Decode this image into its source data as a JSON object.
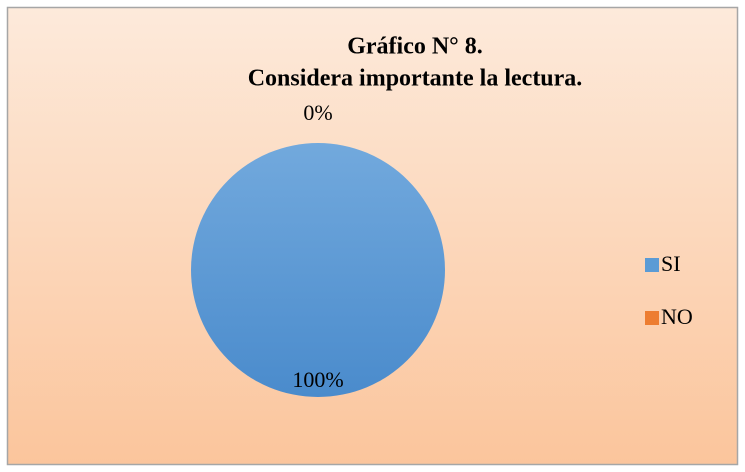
{
  "chart_data": {
    "type": "pie",
    "title": [
      "Gráfico N° 8.",
      "Considera importante la lectura."
    ],
    "categories": [
      "SI",
      "NO"
    ],
    "values": [
      100,
      0
    ],
    "value_labels": [
      "100%",
      "0%"
    ],
    "colors": [
      "#5b9bd5",
      "#ed7d31"
    ],
    "legend": "right"
  }
}
